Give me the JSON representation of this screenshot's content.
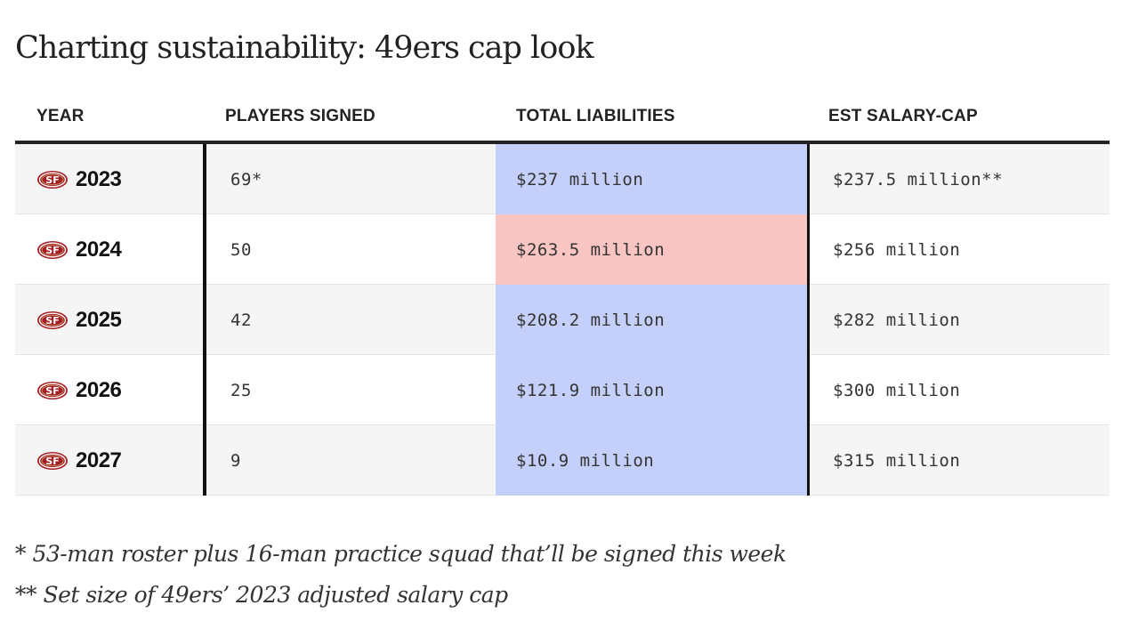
{
  "title": "Charting sustainability: 49ers cap look",
  "colors": {
    "liability_under_cap": "#c5d0fa",
    "liability_over_cap": "#f8c5c2",
    "row_shade": "#f5f5f5",
    "logo_red": "#a31d23",
    "logo_gold": "#c9a66b"
  },
  "table": {
    "headers": {
      "year": "YEAR",
      "players_signed": "PLAYERS SIGNED",
      "total_liabilities": "TOTAL LIABILITIES",
      "est_salary_cap": "EST SALARY-CAP"
    },
    "logo_icon": "49ers-logo-icon",
    "rows": [
      {
        "year": "2023",
        "players_signed": "69*",
        "total_liabilities": "$237 million",
        "est_salary_cap": "$237.5 million**",
        "over_cap": false
      },
      {
        "year": "2024",
        "players_signed": "50",
        "total_liabilities": "$263.5 million",
        "est_salary_cap": "$256 million",
        "over_cap": true
      },
      {
        "year": "2025",
        "players_signed": "42",
        "total_liabilities": "$208.2 million",
        "est_salary_cap": "$282 million",
        "over_cap": false
      },
      {
        "year": "2026",
        "players_signed": "25",
        "total_liabilities": "$121.9 million",
        "est_salary_cap": "$300 million",
        "over_cap": false
      },
      {
        "year": "2027",
        "players_signed": "9",
        "total_liabilities": "$10.9 million",
        "est_salary_cap": "$315 million",
        "over_cap": false
      }
    ]
  },
  "footnotes": [
    "* 53-man roster plus 16-man practice squad that’ll be signed this week",
    "** Set size of 49ers’ 2023 adjusted salary cap"
  ]
}
